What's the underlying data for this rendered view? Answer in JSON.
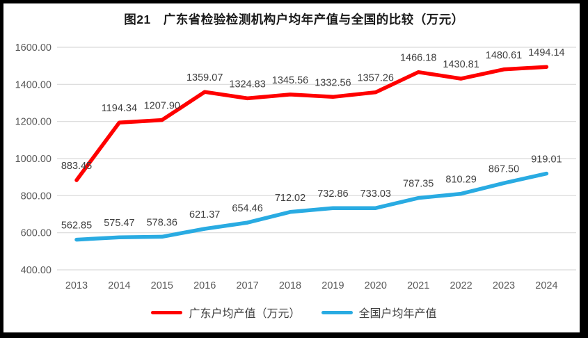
{
  "title": "图21　广东省检验检测机构户均年产值与全国的比较（万元）",
  "chart_data": {
    "type": "line",
    "title": "图21　广东省检验检测机构户均年产值与全国的比较（万元）",
    "categories": [
      "2013",
      "2014",
      "2015",
      "2016",
      "2017",
      "2018",
      "2019",
      "2020",
      "2021",
      "2022",
      "2023",
      "2024"
    ],
    "series": [
      {
        "name": "广东户均产值（万元）",
        "color": "#ff0000",
        "values": [
          883.45,
          1194.34,
          1207.9,
          1359.07,
          1324.83,
          1345.56,
          1332.56,
          1357.26,
          1466.18,
          1430.81,
          1480.61,
          1494.14
        ]
      },
      {
        "name": "全国户均年产值",
        "color": "#29abe2",
        "values": [
          562.85,
          575.47,
          578.36,
          621.37,
          654.46,
          712.02,
          732.86,
          733.03,
          787.35,
          810.29,
          867.5,
          919.01
        ]
      }
    ],
    "xlabel": "",
    "ylabel": "",
    "ylim": [
      400,
      1600
    ],
    "ytick_step": 200,
    "ytick_labels": [
      "400.00",
      "600.00",
      "800.00",
      "1000.00",
      "1200.00",
      "1400.00",
      "1600.00"
    ],
    "grid": true,
    "legend_position": "bottom",
    "data_labels": true,
    "colors": {
      "gridline": "#d9d9d9",
      "axis_label": "#595959",
      "data_label": "#404040",
      "frame_border": "#000000"
    }
  }
}
